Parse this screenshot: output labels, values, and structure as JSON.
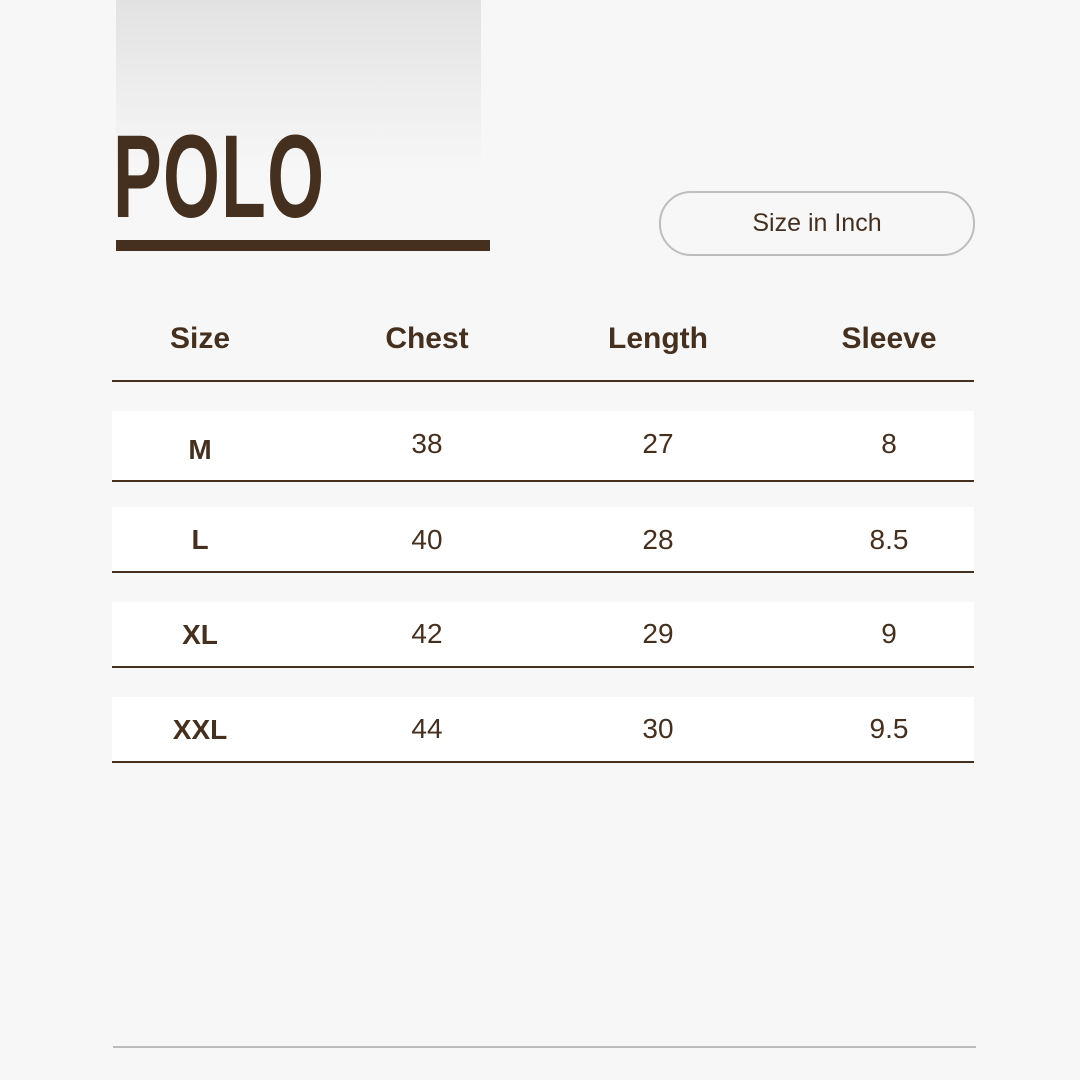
{
  "title": "POLO",
  "unit_label": "Size in Inch",
  "headers": [
    "Size",
    "Chest",
    "Length",
    "Sleeve"
  ],
  "rows": [
    [
      "M",
      "38",
      "27",
      "8"
    ],
    [
      "L",
      "40",
      "28",
      "8.5"
    ],
    [
      "XL",
      "42",
      "29",
      "9"
    ],
    [
      "XXL",
      "44",
      "30",
      "9.5"
    ]
  ],
  "colors": {
    "brand": "#45301f",
    "background": "#f7f7f7"
  }
}
